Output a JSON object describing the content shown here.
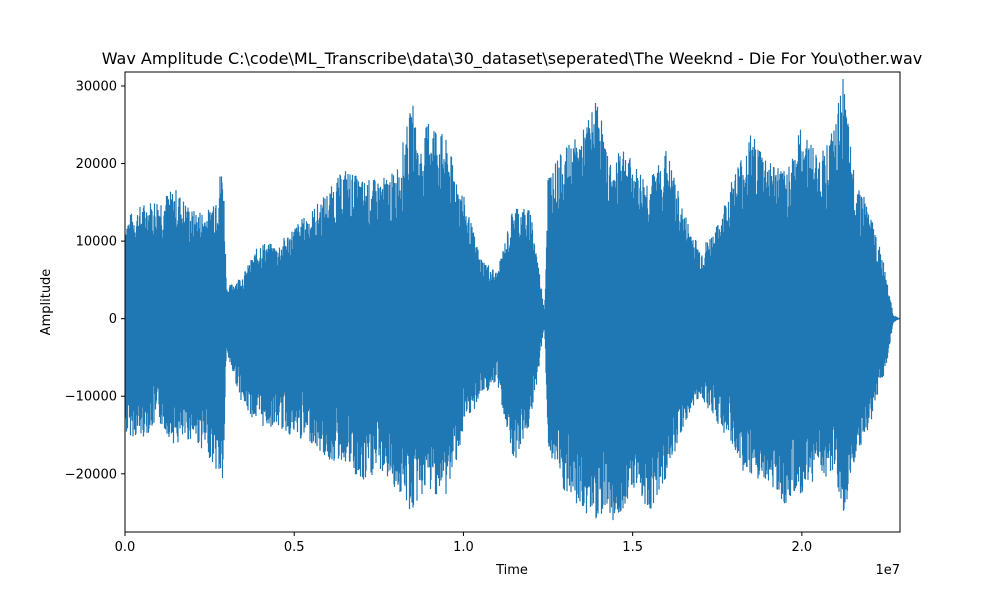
{
  "chart_data": {
    "type": "line",
    "title": "Wav Amplitude C:\\code\\ML_Transcribe\\data\\30_dataset\\seperated\\The Weeknd - Die For You\\other.wav",
    "xlabel": "Time",
    "ylabel": "Amplitude",
    "x_offset_label": "1e7",
    "xlim": [
      0,
      22900000
    ],
    "ylim": [
      -27500,
      31800
    ],
    "x_ticks": [
      0,
      5000000,
      10000000,
      15000000,
      20000000
    ],
    "x_tick_labels": [
      "0.0",
      "0.5",
      "1.0",
      "1.5",
      "2.0"
    ],
    "y_ticks": [
      -20000,
      -10000,
      0,
      10000,
      20000,
      30000
    ],
    "y_tick_labels": [
      "−20000",
      "−10000",
      "0",
      "10000",
      "20000",
      "30000"
    ],
    "grid": false,
    "line_color": "#1f77b4",
    "series": [
      {
        "x": [
          0,
          500000,
          1000000,
          1500000,
          2000000,
          2500000,
          2900000,
          3000000,
          3500000,
          4000000,
          4500000,
          5000000,
          5500000,
          6000000,
          6500000,
          7000000,
          7500000,
          8000000,
          8500000,
          8700000,
          9000000,
          9500000,
          10000000,
          10500000,
          11000000,
          11500000,
          12000000,
          12400000,
          12500000,
          13000000,
          13500000,
          14000000,
          14200000,
          14500000,
          14600000,
          15000000,
          15500000,
          16000000,
          16500000,
          17000000,
          17500000,
          18000000,
          18500000,
          19000000,
          19500000,
          20000000,
          20500000,
          21000000,
          21200000,
          21500000,
          22000000,
          22500000,
          22700000,
          22900000
        ],
        "y_max": [
          13000,
          14800,
          15800,
          16800,
          14000,
          14200,
          20300,
          4000,
          5800,
          10000,
          9500,
          12000,
          14000,
          16500,
          19500,
          18000,
          18000,
          19000,
          28000,
          21500,
          26500,
          23000,
          16000,
          8000,
          6000,
          15000,
          14000,
          1000,
          19000,
          22000,
          24000,
          29000,
          22000,
          19000,
          24000,
          20000,
          18000,
          22000,
          14000,
          9000,
          12000,
          19000,
          24000,
          21000,
          19000,
          25000,
          21000,
          25000,
          31800,
          20000,
          14000,
          6000,
          500,
          0
        ],
        "y_min": [
          -15000,
          -15500,
          -13500,
          -16500,
          -15500,
          -18000,
          -21500,
          -4500,
          -11500,
          -14000,
          -14000,
          -15500,
          -16000,
          -18500,
          -18500,
          -22000,
          -19500,
          -22000,
          -25500,
          -23000,
          -22500,
          -23000,
          -15000,
          -10000,
          -8500,
          -18500,
          -13500,
          -1000,
          -17000,
          -23000,
          -25000,
          -26000,
          -24000,
          -27000,
          -26000,
          -21500,
          -25000,
          -20500,
          -14000,
          -10000,
          -13500,
          -17000,
          -22000,
          -21000,
          -24000,
          -23000,
          -20000,
          -21000,
          -27000,
          -19500,
          -14000,
          -6000,
          -500,
          0
        ]
      }
    ]
  }
}
